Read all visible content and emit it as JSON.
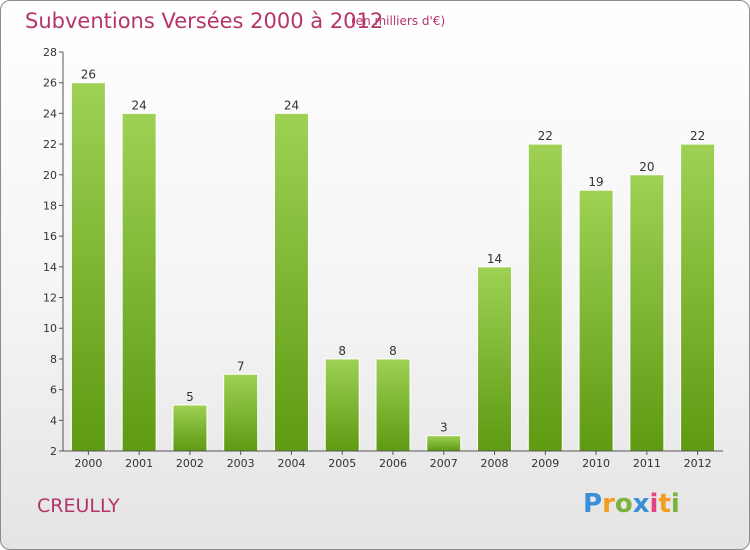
{
  "title": "Subventions Versées 2000 à 2012",
  "subtitle": "(en milliers d'€)",
  "commune": "CREULLY",
  "logo": {
    "letters": [
      "P",
      "r",
      "o",
      "x",
      "i",
      "t",
      "i"
    ],
    "colors": [
      "#3a8fd6",
      "#f39c1f",
      "#7ab33d",
      "#3a8fd6",
      "#e83f85",
      "#f39c1f",
      "#7ab33d"
    ]
  },
  "colors": {
    "bar_top": "#9ed154",
    "bar_bottom": "#5e9a12",
    "axis": "#555555",
    "grid": "#cfcfcf"
  },
  "chart_data": {
    "type": "bar",
    "title": "Subventions Versées 2000 à 2012",
    "subtitle": "(en milliers d'€)",
    "xlabel": "",
    "ylabel": "",
    "categories": [
      "2000",
      "2001",
      "2002",
      "2003",
      "2004",
      "2005",
      "2006",
      "2007",
      "2008",
      "2009",
      "2010",
      "2011",
      "2012"
    ],
    "values": [
      26,
      24,
      5,
      7,
      24,
      8,
      8,
      3,
      14,
      22,
      19,
      20,
      22
    ],
    "ylim": [
      2,
      28
    ],
    "yticks": [
      2,
      4,
      6,
      8,
      10,
      12,
      14,
      16,
      18,
      20,
      22,
      24,
      26,
      28
    ],
    "grid": false,
    "legend": "none"
  }
}
